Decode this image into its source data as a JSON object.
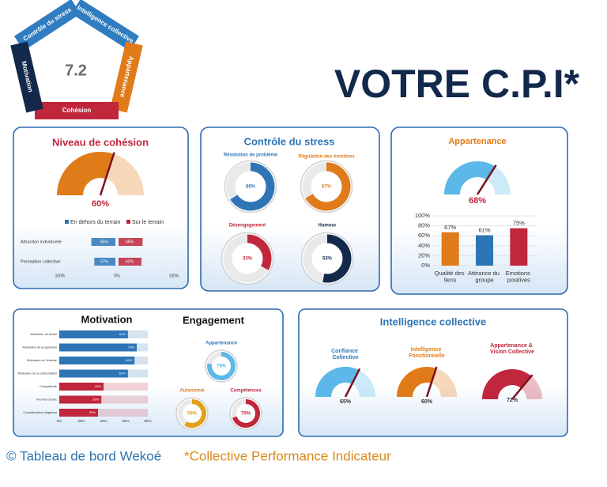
{
  "pentagon": {
    "score": "7.2",
    "labels": [
      "Contrôle du stress",
      "Intelligence collective",
      "Appartenance",
      "Cohésion",
      "Motivation"
    ]
  },
  "title": "VOTRE C.P.I*",
  "footer": {
    "brand": "© Tableau de bord Wekoé",
    "note": "*Collective Performance Indicateur"
  },
  "chart_data": [
    {
      "type": "gauge",
      "title": "Niveau de cohésion",
      "values": [
        60
      ],
      "value_labels": [
        "60%"
      ],
      "colors": [
        "#e07b1a"
      ],
      "ylim": [
        0,
        100
      ]
    },
    {
      "type": "butterfly",
      "categories": [
        "Attraction individuelle",
        "Perception collective"
      ],
      "series": [
        {
          "name": "En dehors du terrain",
          "color": "#2e75b6",
          "values": [
            65,
            57
          ],
          "value_labels": [
            "65%",
            "57%"
          ]
        },
        {
          "name": "Sur le terrain",
          "color": "#c0263c",
          "values": [
            65,
            62
          ],
          "value_labels": [
            "65%",
            "62%"
          ]
        }
      ],
      "xlim": [
        -100,
        100
      ],
      "xticks": [
        {
          "value": -100,
          "label": "100%"
        },
        {
          "value": 0,
          "label": "0%"
        },
        {
          "value": 100,
          "label": "100%"
        }
      ]
    },
    {
      "type": "donut",
      "title": "Contrôle du stress",
      "categories": [
        "Résolution de problème",
        "Régulation des émotions",
        "Désengagement",
        "Humour"
      ],
      "values": [
        66,
        67,
        33,
        53
      ],
      "value_labels": [
        "66%",
        "67%",
        "33%",
        "53%"
      ],
      "colors": [
        "#2e75b6",
        "#e07b1a",
        "#c0263c",
        "#13294b"
      ],
      "ylim": [
        0,
        100
      ]
    },
    {
      "type": "gauge",
      "title": "Appartenance",
      "values": [
        68
      ],
      "value_labels": [
        "68%"
      ],
      "colors": [
        "#5bb8e8"
      ],
      "ylim": [
        0,
        100
      ]
    },
    {
      "type": "bar",
      "categories": [
        "Qualité des liens",
        "Attirance du groupe",
        "Emotions positives"
      ],
      "values": [
        67,
        61,
        75
      ],
      "value_labels": [
        "67%",
        "61%",
        "75%"
      ],
      "colors": [
        "#e07b1a",
        "#2e75b6",
        "#c0263c"
      ],
      "ylim": [
        0,
        100
      ],
      "yticks": [
        {
          "value": 0,
          "label": "0%"
        },
        {
          "value": 20,
          "label": "20%"
        },
        {
          "value": 40,
          "label": "40%"
        },
        {
          "value": 60,
          "label": "60%"
        },
        {
          "value": 80,
          "label": "80%"
        },
        {
          "value": 100,
          "label": "100%"
        }
      ]
    },
    {
      "type": "hbar",
      "title": "Motivation",
      "categories": [
        "Motivation de travail",
        "Motivation de progression",
        "Motivation de l'entente",
        "Motivation de la confrontation",
        "Compétitivité",
        "Peur de l'échec",
        "Considérations négatives"
      ],
      "values": [
        62,
        70,
        68,
        62,
        40,
        38,
        35
      ],
      "value_labels": [
        "62%",
        "70%",
        "68%",
        "62%",
        "40%",
        "38%",
        "35%"
      ],
      "colors": [
        "#2e75b6",
        "#2e75b6",
        "#2e75b6",
        "#2e75b6",
        "#c0263c",
        "#c0263c",
        "#c0263c"
      ],
      "xlim": [
        0,
        80
      ],
      "xticks": [
        {
          "value": 0,
          "label": "0%"
        },
        {
          "value": 20,
          "label": "20%"
        },
        {
          "value": 40,
          "label": "40%"
        },
        {
          "value": 60,
          "label": "60%"
        },
        {
          "value": 80,
          "label": "80%"
        }
      ]
    },
    {
      "type": "donut",
      "title": "Engagement",
      "categories": [
        "Appartenance",
        "Autonomie",
        "Compétences"
      ],
      "values": [
        78,
        59,
        70
      ],
      "value_labels": [
        "78%",
        "59%",
        "70%"
      ],
      "colors": [
        "#5bb8e8",
        "#e0a11a",
        "#c0263c"
      ],
      "ylim": [
        0,
        100
      ]
    },
    {
      "type": "gauge",
      "title": "Intelligence collective",
      "categories": [
        "Confiance Collective",
        "Intelligence Fonctionnelle",
        "Appartenance & Vision Collective"
      ],
      "values": [
        65,
        60,
        72
      ],
      "value_labels": [
        "65%",
        "60%",
        "72%"
      ],
      "colors": [
        "#5bb8e8",
        "#e07b1a",
        "#c0263c"
      ],
      "ylim": [
        0,
        100
      ]
    }
  ]
}
